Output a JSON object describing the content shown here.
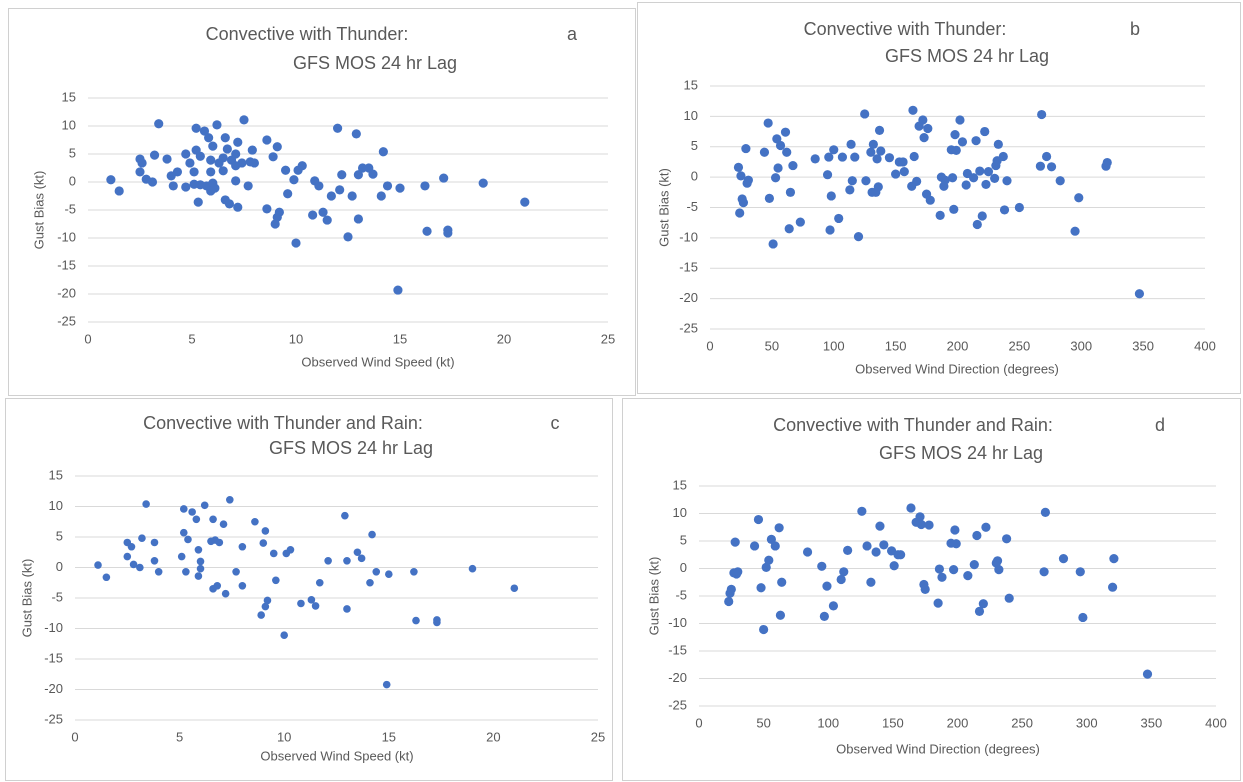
{
  "chart_data": [
    {
      "type": "scatter",
      "title": "Convective with Thunder:",
      "subtitle": "GFS MOS 24 hr Lag",
      "panel_label": "a",
      "x_label": "Observed Wind Speed (kt)",
      "y_label": "Gust Bias (kt)",
      "color": "#4472c4",
      "grid": true,
      "xlim": [
        0,
        25
      ],
      "xticks": [
        0,
        5,
        10,
        15,
        20,
        25
      ],
      "ylim": [
        -25,
        15
      ],
      "yticks": [
        -25,
        -20,
        -15,
        -10,
        -5,
        0,
        5,
        10,
        15
      ],
      "x": [
        1.1,
        1.5,
        2.5,
        2.6,
        2.5,
        2.8,
        3.1,
        3.2,
        3.4,
        3.8,
        4.0,
        4.1,
        4.3,
        4.7,
        4.7,
        4.9,
        5.1,
        5.2,
        5.2,
        5.1,
        5.3,
        5.4,
        5.4,
        5.6,
        5.7,
        5.8,
        5.9,
        5.9,
        6.0,
        5.9,
        6.0,
        6.2,
        6.1,
        6.3,
        6.5,
        6.5,
        6.6,
        6.6,
        6.7,
        6.8,
        6.9,
        7.1,
        7.1,
        7.1,
        7.2,
        7.2,
        7.4,
        7.5,
        7.7,
        7.8,
        7.9,
        8.0,
        8.6,
        8.6,
        8.9,
        9.0,
        9.1,
        9.1,
        9.2,
        9.5,
        9.6,
        9.9,
        10.0,
        10.1,
        10.3,
        10.8,
        10.9,
        11.1,
        11.3,
        11.5,
        11.7,
        12.0,
        12.1,
        12.2,
        12.5,
        12.7,
        12.9,
        13.0,
        13.0,
        13.2,
        13.5,
        13.7,
        14.1,
        14.2,
        14.4,
        14.9,
        15.0,
        16.2,
        16.3,
        17.1,
        17.3,
        17.3,
        19.0,
        21.0
      ],
      "values": [
        0.4,
        -1.6,
        4.1,
        3.4,
        1.8,
        0.5,
        0,
        4.8,
        10.4,
        4.1,
        1.1,
        -0.7,
        1.8,
        5.0,
        -0.9,
        3.4,
        1.8,
        9.6,
        5.7,
        -0.4,
        -3.6,
        4.6,
        -0.5,
        9.1,
        -0.7,
        7.9,
        -1.6,
        1.8,
        -0.2,
        3.9,
        6.4,
        10.2,
        -1.1,
        3.4,
        4.3,
        2.0,
        7.9,
        -3.2,
        5.9,
        -3.9,
        3.9,
        5.0,
        2.9,
        0.2,
        7.1,
        -4.5,
        3.4,
        11.1,
        -0.7,
        3.6,
        5.7,
        3.4,
        7.5,
        -4.8,
        4.5,
        -7.5,
        6.3,
        -6.3,
        -5.4,
        2.1,
        -2.1,
        0.4,
        -10.9,
        2.1,
        2.9,
        -5.9,
        0.2,
        -0.7,
        -5.4,
        -6.8,
        -2.5,
        9.6,
        -1.4,
        1.3,
        -9.8,
        -2.5,
        8.6,
        -6.6,
        1.3,
        2.5,
        2.5,
        1.4,
        -2.5,
        5.4,
        -0.7,
        -19.3,
        -1.1,
        -0.7,
        -8.8,
        0.7,
        -9.1,
        -8.6,
        -0.2,
        -3.6
      ]
    },
    {
      "type": "scatter",
      "title": "Convective with Thunder:",
      "subtitle": "GFS MOS 24 hr Lag",
      "panel_label": "b",
      "x_label": "Observed Wind Direction (degrees)",
      "y_label": "Gust Bias (kt)",
      "color": "#4472c4",
      "grid": true,
      "xlim": [
        0,
        400
      ],
      "xticks": [
        0,
        50,
        100,
        150,
        200,
        250,
        300,
        350,
        400
      ],
      "ylim": [
        -25,
        15
      ],
      "yticks": [
        -25,
        -20,
        -15,
        -10,
        -5,
        0,
        5,
        10,
        15
      ],
      "x": [
        23,
        24,
        25,
        26,
        27,
        29,
        30,
        31,
        44,
        47,
        48,
        51,
        53,
        54,
        55,
        57,
        61,
        62,
        64,
        65,
        67,
        73,
        85,
        95,
        96,
        97,
        98,
        100,
        104,
        107,
        113,
        114,
        115,
        117,
        120,
        125,
        126,
        130,
        131,
        132,
        134,
        135,
        136,
        137,
        138,
        145,
        150,
        153,
        156,
        157,
        163,
        164,
        165,
        167,
        169,
        172,
        173,
        175,
        176,
        178,
        186,
        187,
        189,
        190,
        195,
        196,
        197,
        198,
        199,
        202,
        204,
        207,
        208,
        213,
        215,
        216,
        218,
        220,
        222,
        223,
        225,
        230,
        231,
        232,
        233,
        237,
        238,
        240,
        250,
        267,
        268,
        272,
        276,
        283,
        295,
        298,
        320,
        321,
        347
      ],
      "values": [
        1.6,
        -5.9,
        0.2,
        -3.6,
        -4.2,
        4.7,
        -1.0,
        -0.5,
        4.1,
        8.9,
        -3.5,
        -11.0,
        -0.1,
        6.3,
        1.5,
        5.2,
        7.4,
        4.1,
        -8.5,
        -2.5,
        1.9,
        -7.4,
        3.0,
        0.4,
        3.3,
        -8.7,
        -3.1,
        4.5,
        -6.8,
        3.3,
        -2.1,
        5.4,
        -0.6,
        3.3,
        -9.8,
        10.4,
        -0.6,
        4.1,
        -2.5,
        5.4,
        -2.5,
        3.0,
        -1.6,
        7.7,
        4.3,
        3.2,
        0.5,
        2.5,
        2.5,
        0.9,
        -1.5,
        11.0,
        3.4,
        -0.7,
        8.4,
        9.4,
        6.5,
        -2.8,
        8.0,
        -3.8,
        -6.3,
        0.0,
        -1.5,
        -0.5,
        4.5,
        -0.1,
        -5.3,
        7.0,
        4.4,
        9.4,
        5.8,
        -1.3,
        0.6,
        -0.1,
        6.0,
        -7.8,
        1.0,
        -6.4,
        7.5,
        -1.2,
        0.9,
        -0.2,
        1.9,
        2.7,
        5.4,
        3.4,
        -5.4,
        -0.6,
        -5.0,
        1.8,
        10.3,
        3.4,
        1.7,
        -0.6,
        -8.9,
        -3.4,
        1.8,
        2.4,
        -19.2
      ]
    },
    {
      "type": "scatter",
      "title": "Convective with Thunder and Rain:",
      "subtitle": "GFS MOS 24 hr Lag",
      "panel_label": "c",
      "x_label": "Observed Wind Speed (kt)",
      "y_label": "Gust Bias (kt)",
      "color": "#4472c4",
      "grid": true,
      "xlim": [
        0,
        25
      ],
      "xticks": [
        0,
        5,
        10,
        15,
        20,
        25
      ],
      "ylim": [
        -25,
        15
      ],
      "yticks": [
        -25,
        -20,
        -15,
        -10,
        -5,
        0,
        5,
        10,
        15
      ],
      "x": [
        1.1,
        1.5,
        2.5,
        2.5,
        2.7,
        2.8,
        3.1,
        3.2,
        3.4,
        3.8,
        3.8,
        4.0,
        5.1,
        5.2,
        5.2,
        5.3,
        5.4,
        5.6,
        5.8,
        5.9,
        5.9,
        6.0,
        6.0,
        6.2,
        6.5,
        6.6,
        6.6,
        6.7,
        6.8,
        6.9,
        7.1,
        7.2,
        7.4,
        7.7,
        8.0,
        8.0,
        8.6,
        8.9,
        9.0,
        9.1,
        9.1,
        9.2,
        9.5,
        9.6,
        10.0,
        10.1,
        10.3,
        10.8,
        11.3,
        11.5,
        11.7,
        12.1,
        12.9,
        13.0,
        13.0,
        13.5,
        13.7,
        14.1,
        14.2,
        14.4,
        14.9,
        15.0,
        16.2,
        16.3,
        17.3,
        17.3,
        19.0,
        21.0
      ],
      "values": [
        0.4,
        -1.6,
        4.1,
        1.8,
        3.4,
        0.5,
        0,
        4.8,
        10.4,
        4.1,
        1.1,
        -0.7,
        1.8,
        9.6,
        5.7,
        -0.7,
        4.6,
        9.1,
        7.9,
        2.9,
        -1.4,
        -0.2,
        1.0,
        10.2,
        4.3,
        7.9,
        -3.5,
        4.5,
        -3.0,
        4.1,
        7.1,
        -4.3,
        11.1,
        -0.7,
        3.4,
        -3.0,
        7.5,
        -7.8,
        4.0,
        6.0,
        -6.4,
        -5.4,
        2.3,
        -2.1,
        -11.1,
        2.3,
        2.9,
        -5.9,
        -5.3,
        -6.3,
        -2.5,
        1.1,
        8.5,
        -6.8,
        1.1,
        2.5,
        1.5,
        -2.5,
        5.4,
        -0.7,
        -19.2,
        -1.1,
        -0.7,
        -8.7,
        -8.6,
        -9.0,
        -0.2,
        -3.4
      ]
    },
    {
      "type": "scatter",
      "title": "Convective with Thunder and Rain:",
      "subtitle": "GFS MOS 24 hr Lag",
      "panel_label": "d",
      "x_label": "Observed Wind Direction (degrees)",
      "y_label": "Gust Bias (kt)",
      "color": "#4472c4",
      "grid": true,
      "xlim": [
        0,
        400
      ],
      "xticks": [
        0,
        50,
        100,
        150,
        200,
        250,
        300,
        350,
        400
      ],
      "ylim": [
        -25,
        15
      ],
      "yticks": [
        -25,
        -20,
        -15,
        -10,
        -5,
        0,
        5,
        10,
        15
      ],
      "x": [
        23,
        24,
        25,
        27,
        28,
        29,
        30,
        43,
        46,
        48,
        50,
        52,
        54,
        56,
        59,
        62,
        63,
        64,
        84,
        95,
        97,
        99,
        104,
        110,
        112,
        115,
        126,
        130,
        133,
        137,
        140,
        143,
        149,
        151,
        154,
        156,
        164,
        168,
        171,
        172,
        174,
        175,
        178,
        185,
        186,
        188,
        195,
        197,
        198,
        199,
        208,
        213,
        215,
        217,
        220,
        222,
        230,
        231,
        232,
        238,
        240,
        267,
        268,
        282,
        295,
        297,
        320,
        321,
        347
      ],
      "values": [
        -6.0,
        -4.5,
        -3.8,
        -0.8,
        4.8,
        -1.0,
        -0.6,
        4.1,
        8.9,
        -3.5,
        -11.1,
        0.2,
        1.5,
        5.3,
        4.1,
        7.4,
        -8.5,
        -2.5,
        3.0,
        0.4,
        -8.7,
        -3.2,
        -6.8,
        -2.0,
        -0.6,
        3.3,
        10.4,
        4.1,
        -2.5,
        3.0,
        7.7,
        4.3,
        3.2,
        0.5,
        2.5,
        2.5,
        11.0,
        8.4,
        9.4,
        8.0,
        -2.9,
        -3.8,
        7.9,
        -6.3,
        -0.1,
        -1.6,
        4.6,
        -0.2,
        7.0,
        4.5,
        -1.3,
        0.7,
        6.0,
        -7.8,
        -6.4,
        7.5,
        1.0,
        1.4,
        -0.2,
        5.4,
        -5.4,
        -0.6,
        10.2,
        1.8,
        -0.6,
        -8.9,
        -3.4,
        1.8,
        -19.2
      ]
    }
  ]
}
